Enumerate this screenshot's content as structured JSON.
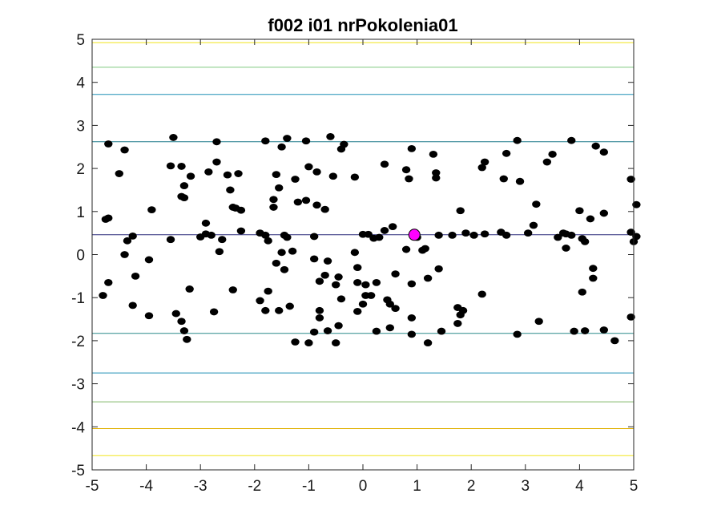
{
  "chart_data": {
    "type": "scatter",
    "title": "f002 i01 nrPokolenia01",
    "xlabel": "",
    "ylabel": "",
    "xlim": [
      -5,
      5
    ],
    "ylim": [
      -5,
      5
    ],
    "x_ticks": [
      "-5",
      "-4",
      "-3",
      "-2",
      "-1",
      "0",
      "1",
      "2",
      "3",
      "4",
      "5"
    ],
    "y_ticks": [
      "5",
      "4",
      "3",
      "2",
      "1",
      "0",
      "-1",
      "-2",
      "-3",
      "-4",
      "-5"
    ],
    "grid": false,
    "contour_lines": [
      {
        "y": 4.92,
        "color": "#f2e51d"
      },
      {
        "y": 4.35,
        "color": "#7fc97f"
      },
      {
        "y": 3.72,
        "color": "#1f8fb5"
      },
      {
        "y": 2.62,
        "color": "#1f7a8c"
      },
      {
        "y": 0.46,
        "color": "#2a2a7a"
      },
      {
        "y": -1.83,
        "color": "#2a8a8a"
      },
      {
        "y": -2.75,
        "color": "#1f8fb5"
      },
      {
        "y": -3.42,
        "color": "#7fb868"
      },
      {
        "y": -4.04,
        "color": "#e0b000"
      },
      {
        "y": -4.67,
        "color": "#f2e51d"
      }
    ],
    "best_point": {
      "x": 0.95,
      "y": 0.46,
      "color": "#ff00ff"
    },
    "series": [
      {
        "marker_color": "#000000",
        "points": [
          [
            -4.7,
            2.57
          ],
          [
            -4.5,
            1.88
          ],
          [
            -4.4,
            2.43
          ],
          [
            -3.5,
            2.72
          ],
          [
            -3.55,
            2.06
          ],
          [
            -3.35,
            2.05
          ],
          [
            -3.18,
            1.82
          ],
          [
            -2.7,
            2.62
          ],
          [
            -2.7,
            2.15
          ],
          [
            -2.5,
            1.85
          ],
          [
            -2.3,
            1.88
          ],
          [
            -2.85,
            1.92
          ],
          [
            -1.8,
            2.64
          ],
          [
            -1.5,
            2.5
          ],
          [
            -1.4,
            2.7
          ],
          [
            -1.05,
            2.64
          ],
          [
            -0.6,
            2.74
          ],
          [
            -0.35,
            2.56
          ],
          [
            -0.4,
            2.45
          ],
          [
            -1.0,
            2.04
          ],
          [
            -0.85,
            1.92
          ],
          [
            -1.25,
            1.75
          ],
          [
            -1.6,
            1.86
          ],
          [
            -0.55,
            1.82
          ],
          [
            -0.15,
            1.8
          ],
          [
            0.4,
            2.1
          ],
          [
            0.8,
            1.97
          ],
          [
            0.85,
            1.76
          ],
          [
            0.9,
            2.46
          ],
          [
            1.3,
            2.33
          ],
          [
            1.35,
            1.9
          ],
          [
            1.35,
            1.78
          ],
          [
            2.2,
            2.02
          ],
          [
            2.25,
            2.15
          ],
          [
            2.6,
            1.76
          ],
          [
            2.65,
            2.35
          ],
          [
            2.85,
            2.65
          ],
          [
            2.9,
            1.7
          ],
          [
            3.4,
            2.15
          ],
          [
            3.5,
            2.33
          ],
          [
            3.85,
            2.65
          ],
          [
            4.3,
            2.52
          ],
          [
            4.45,
            2.38
          ],
          [
            4.95,
            1.75
          ],
          [
            -4.75,
            0.82
          ],
          [
            -4.7,
            0.85
          ],
          [
            -3.9,
            1.04
          ],
          [
            -3.35,
            1.35
          ],
          [
            -3.3,
            1.6
          ],
          [
            -3.3,
            1.32
          ],
          [
            -2.9,
            0.73
          ],
          [
            -2.45,
            1.5
          ],
          [
            -2.4,
            1.1
          ],
          [
            -2.35,
            1.08
          ],
          [
            -2.25,
            1.03
          ],
          [
            -1.65,
            1.28
          ],
          [
            -1.65,
            1.1
          ],
          [
            -1.55,
            1.55
          ],
          [
            -1.2,
            1.22
          ],
          [
            -1.05,
            1.26
          ],
          [
            -0.85,
            1.15
          ],
          [
            -0.7,
            1.05
          ],
          [
            3.2,
            1.17
          ],
          [
            1.8,
            1.02
          ],
          [
            4.0,
            1.02
          ],
          [
            4.2,
            0.83
          ],
          [
            4.45,
            0.96
          ],
          [
            5.05,
            1.16
          ],
          [
            -4.35,
            0.32
          ],
          [
            -4.25,
            0.43
          ],
          [
            -3.55,
            0.35
          ],
          [
            -3.0,
            0.41
          ],
          [
            -2.9,
            0.48
          ],
          [
            -2.8,
            0.45
          ],
          [
            -2.6,
            0.35
          ],
          [
            -2.65,
            0.07
          ],
          [
            -2.25,
            0.55
          ],
          [
            -1.9,
            0.5
          ],
          [
            -1.8,
            0.45
          ],
          [
            -1.75,
            0.32
          ],
          [
            -1.45,
            0.45
          ],
          [
            -1.4,
            0.4
          ],
          [
            -0.9,
            0.42
          ],
          [
            0.0,
            0.47
          ],
          [
            0.1,
            0.47
          ],
          [
            0.2,
            0.38
          ],
          [
            0.3,
            0.4
          ],
          [
            0.4,
            0.56
          ],
          [
            0.55,
            0.65
          ],
          [
            0.8,
            0.12
          ],
          [
            1.0,
            0.4
          ],
          [
            1.1,
            0.1
          ],
          [
            1.15,
            0.14
          ],
          [
            1.4,
            0.45
          ],
          [
            1.65,
            0.45
          ],
          [
            1.9,
            0.5
          ],
          [
            2.05,
            0.45
          ],
          [
            2.25,
            0.48
          ],
          [
            2.55,
            0.52
          ],
          [
            2.65,
            0.45
          ],
          [
            3.05,
            0.5
          ],
          [
            3.15,
            0.68
          ],
          [
            3.6,
            0.4
          ],
          [
            3.7,
            0.5
          ],
          [
            3.75,
            0.48
          ],
          [
            3.85,
            0.45
          ],
          [
            3.75,
            0.15
          ],
          [
            4.05,
            0.37
          ],
          [
            4.1,
            0.3
          ],
          [
            4.95,
            0.52
          ],
          [
            5.0,
            0.3
          ],
          [
            5.05,
            0.42
          ],
          [
            -4.4,
            0.0
          ],
          [
            -4.2,
            -0.5
          ],
          [
            -3.95,
            -0.12
          ],
          [
            -4.8,
            -0.95
          ],
          [
            -4.7,
            -0.65
          ],
          [
            -4.25,
            -1.18
          ],
          [
            -3.95,
            -1.42
          ],
          [
            -3.2,
            -0.8
          ],
          [
            -2.4,
            -0.82
          ],
          [
            -1.75,
            -0.85
          ],
          [
            -1.6,
            -0.2
          ],
          [
            -1.5,
            0.05
          ],
          [
            -1.45,
            -0.35
          ],
          [
            -1.3,
            0.08
          ],
          [
            -0.9,
            -0.1
          ],
          [
            -0.8,
            -0.62
          ],
          [
            -0.7,
            -0.48
          ],
          [
            -0.65,
            -0.15
          ],
          [
            -0.5,
            -0.7
          ],
          [
            -0.45,
            -0.52
          ],
          [
            -0.15,
            0.05
          ],
          [
            -0.1,
            -0.3
          ],
          [
            -0.1,
            -0.65
          ],
          [
            0.05,
            -0.7
          ],
          [
            0.05,
            -0.95
          ],
          [
            0.15,
            -0.95
          ],
          [
            0.25,
            -0.65
          ],
          [
            0.6,
            -0.45
          ],
          [
            0.9,
            -0.68
          ],
          [
            1.2,
            -0.55
          ],
          [
            1.4,
            -0.33
          ],
          [
            2.2,
            -0.92
          ],
          [
            4.25,
            -0.32
          ],
          [
            4.25,
            -0.55
          ],
          [
            4.05,
            -0.87
          ],
          [
            -3.45,
            -1.37
          ],
          [
            -3.35,
            -1.55
          ],
          [
            -3.3,
            -1.77
          ],
          [
            -3.25,
            -1.97
          ],
          [
            -2.75,
            -1.33
          ],
          [
            -1.9,
            -1.07
          ],
          [
            -1.8,
            -1.3
          ],
          [
            -1.55,
            -1.3
          ],
          [
            -1.35,
            -1.2
          ],
          [
            -1.25,
            -2.03
          ],
          [
            -1.0,
            -2.05
          ],
          [
            -0.9,
            -1.8
          ],
          [
            -0.8,
            -1.3
          ],
          [
            -0.8,
            -1.47
          ],
          [
            -0.65,
            -1.77
          ],
          [
            -0.5,
            -2.05
          ],
          [
            -0.45,
            -1.65
          ],
          [
            -0.4,
            -1.03
          ],
          [
            -0.1,
            -1.32
          ],
          [
            0.0,
            -1.15
          ],
          [
            0.25,
            -1.78
          ],
          [
            0.45,
            -1.05
          ],
          [
            0.5,
            -1.15
          ],
          [
            0.5,
            -1.7
          ],
          [
            0.6,
            -1.25
          ],
          [
            0.9,
            -1.47
          ],
          [
            0.9,
            -1.85
          ],
          [
            1.2,
            -2.05
          ],
          [
            1.45,
            -1.78
          ],
          [
            1.75,
            -1.23
          ],
          [
            1.75,
            -1.6
          ],
          [
            1.8,
            -1.4
          ],
          [
            1.85,
            -1.3
          ],
          [
            2.85,
            -1.85
          ],
          [
            3.25,
            -1.55
          ],
          [
            3.9,
            -1.78
          ],
          [
            4.1,
            -1.77
          ],
          [
            4.45,
            -1.75
          ],
          [
            4.65,
            -2.0
          ],
          [
            4.95,
            -1.45
          ]
        ]
      }
    ]
  }
}
